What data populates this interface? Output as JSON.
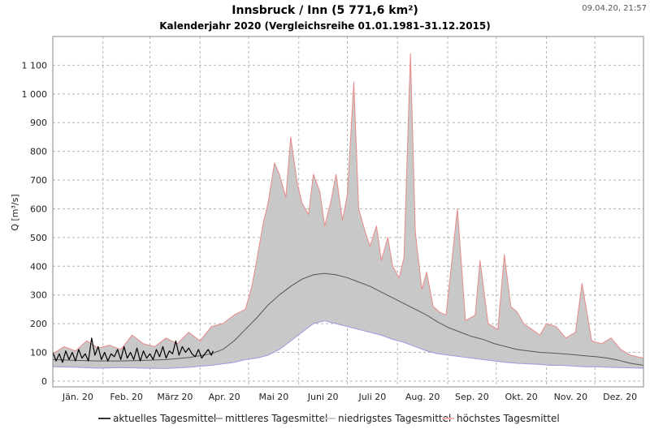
{
  "chart_data": {
    "type": "area",
    "title": "Innsbruck / Inn (5 771,6 km²)",
    "subtitle": "Kalenderjahr 2020 (Vergleichsreihe 01.01.1981–31.12.2015)",
    "timestamp": "09.04.20, 21:57",
    "ylabel": "Q [m³/s]",
    "ylim": [
      -20,
      1200
    ],
    "yticks": [
      0,
      100,
      200,
      300,
      400,
      500,
      600,
      700,
      800,
      900,
      1000,
      1100
    ],
    "ytick_labels": [
      "0",
      "100",
      "200",
      "300",
      "400",
      "500",
      "600",
      "700",
      "800",
      "900",
      "1 000",
      "1 100"
    ],
    "months": [
      "Jän. 20",
      "Feb. 20",
      "März 20",
      "Apr. 20",
      "Mai 20",
      "Juni 20",
      "Juli 20",
      "Aug. 20",
      "Sep. 20",
      "Okt. 20",
      "Nov. 20",
      "Dez. 20"
    ],
    "x_unit": "day of year 2020",
    "xlim": [
      1,
      366
    ],
    "grid": true,
    "legend_position": "bottom",
    "series": [
      {
        "name": "höchstes Tagesmittel",
        "color": "#e88a8a",
        "x": [
          1,
          8,
          15,
          22,
          29,
          36,
          43,
          50,
          57,
          64,
          71,
          78,
          85,
          92,
          99,
          106,
          113,
          120,
          124,
          127,
          131,
          134,
          138,
          141,
          145,
          148,
          152,
          155,
          159,
          162,
          166,
          169,
          173,
          176,
          180,
          183,
          187,
          190,
          194,
          197,
          201,
          204,
          208,
          211,
          215,
          218,
          222,
          225,
          229,
          232,
          236,
          240,
          244,
          251,
          256,
          262,
          265,
          270,
          276,
          280,
          284,
          288,
          292,
          297,
          302,
          306,
          312,
          318,
          324,
          328,
          334,
          340,
          346,
          352,
          358,
          366
        ],
        "values": [
          95,
          120,
          105,
          140,
          115,
          125,
          110,
          160,
          130,
          120,
          150,
          130,
          170,
          140,
          190,
          200,
          230,
          250,
          330,
          420,
          550,
          620,
          760,
          720,
          640,
          850,
          690,
          620,
          580,
          720,
          660,
          540,
          630,
          720,
          560,
          650,
          1040,
          600,
          520,
          470,
          540,
          420,
          500,
          400,
          360,
          430,
          1140,
          520,
          320,
          380,
          260,
          240,
          230,
          600,
          210,
          230,
          420,
          200,
          180,
          440,
          260,
          240,
          200,
          180,
          160,
          200,
          190,
          150,
          170,
          340,
          140,
          130,
          150,
          110,
          90,
          80
        ]
      },
      {
        "name": "niedrigstes Tagesmittel",
        "color": "#9a9ae0",
        "x": [
          1,
          15,
          29,
          43,
          57,
          71,
          85,
          99,
          113,
          120,
          127,
          134,
          141,
          148,
          155,
          162,
          169,
          176,
          183,
          190,
          197,
          204,
          211,
          218,
          225,
          232,
          239,
          246,
          253,
          260,
          267,
          274,
          281,
          288,
          295,
          302,
          309,
          316,
          323,
          330,
          337,
          344,
          351,
          358,
          366
        ],
        "values": [
          50,
          48,
          45,
          47,
          45,
          44,
          48,
          55,
          65,
          75,
          80,
          90,
          110,
          140,
          170,
          200,
          210,
          200,
          190,
          180,
          170,
          160,
          145,
          135,
          120,
          105,
          95,
          90,
          85,
          80,
          75,
          70,
          65,
          62,
          60,
          58,
          55,
          55,
          52,
          50,
          50,
          48,
          47,
          46,
          45
        ]
      },
      {
        "name": "mittleres Tagesmittel",
        "color": "#555555",
        "x": [
          1,
          15,
          29,
          43,
          57,
          71,
          85,
          99,
          106,
          113,
          120,
          127,
          134,
          141,
          148,
          155,
          162,
          169,
          176,
          183,
          190,
          197,
          204,
          211,
          218,
          225,
          232,
          239,
          246,
          253,
          260,
          267,
          274,
          281,
          288,
          295,
          302,
          309,
          316,
          323,
          330,
          337,
          344,
          351,
          358,
          366
        ],
        "values": [
          75,
          72,
          70,
          70,
          72,
          75,
          82,
          95,
          110,
          140,
          180,
          220,
          265,
          300,
          330,
          355,
          370,
          375,
          370,
          360,
          345,
          330,
          310,
          290,
          270,
          250,
          230,
          205,
          185,
          170,
          155,
          145,
          130,
          120,
          110,
          105,
          100,
          98,
          95,
          92,
          88,
          85,
          80,
          72,
          62,
          55
        ]
      },
      {
        "name": "aktuelles Tagesmittel",
        "color": "#000000",
        "x": [
          1,
          3,
          5,
          7,
          9,
          11,
          13,
          15,
          17,
          19,
          21,
          23,
          25,
          27,
          29,
          31,
          33,
          35,
          37,
          39,
          41,
          43,
          45,
          47,
          49,
          51,
          53,
          55,
          57,
          59,
          61,
          63,
          65,
          67,
          69,
          71,
          73,
          75,
          77,
          79,
          81,
          83,
          85,
          87,
          89,
          91,
          93,
          95,
          97,
          99,
          100
        ],
        "values": [
          100,
          70,
          95,
          65,
          105,
          75,
          100,
          70,
          110,
          80,
          95,
          70,
          150,
          90,
          120,
          75,
          100,
          70,
          95,
          85,
          110,
          75,
          120,
          80,
          100,
          75,
          115,
          70,
          105,
          80,
          95,
          75,
          110,
          85,
          120,
          80,
          105,
          95,
          140,
          90,
          120,
          100,
          115,
          95,
          85,
          110,
          80,
          95,
          110,
          90,
          105
        ]
      }
    ]
  }
}
